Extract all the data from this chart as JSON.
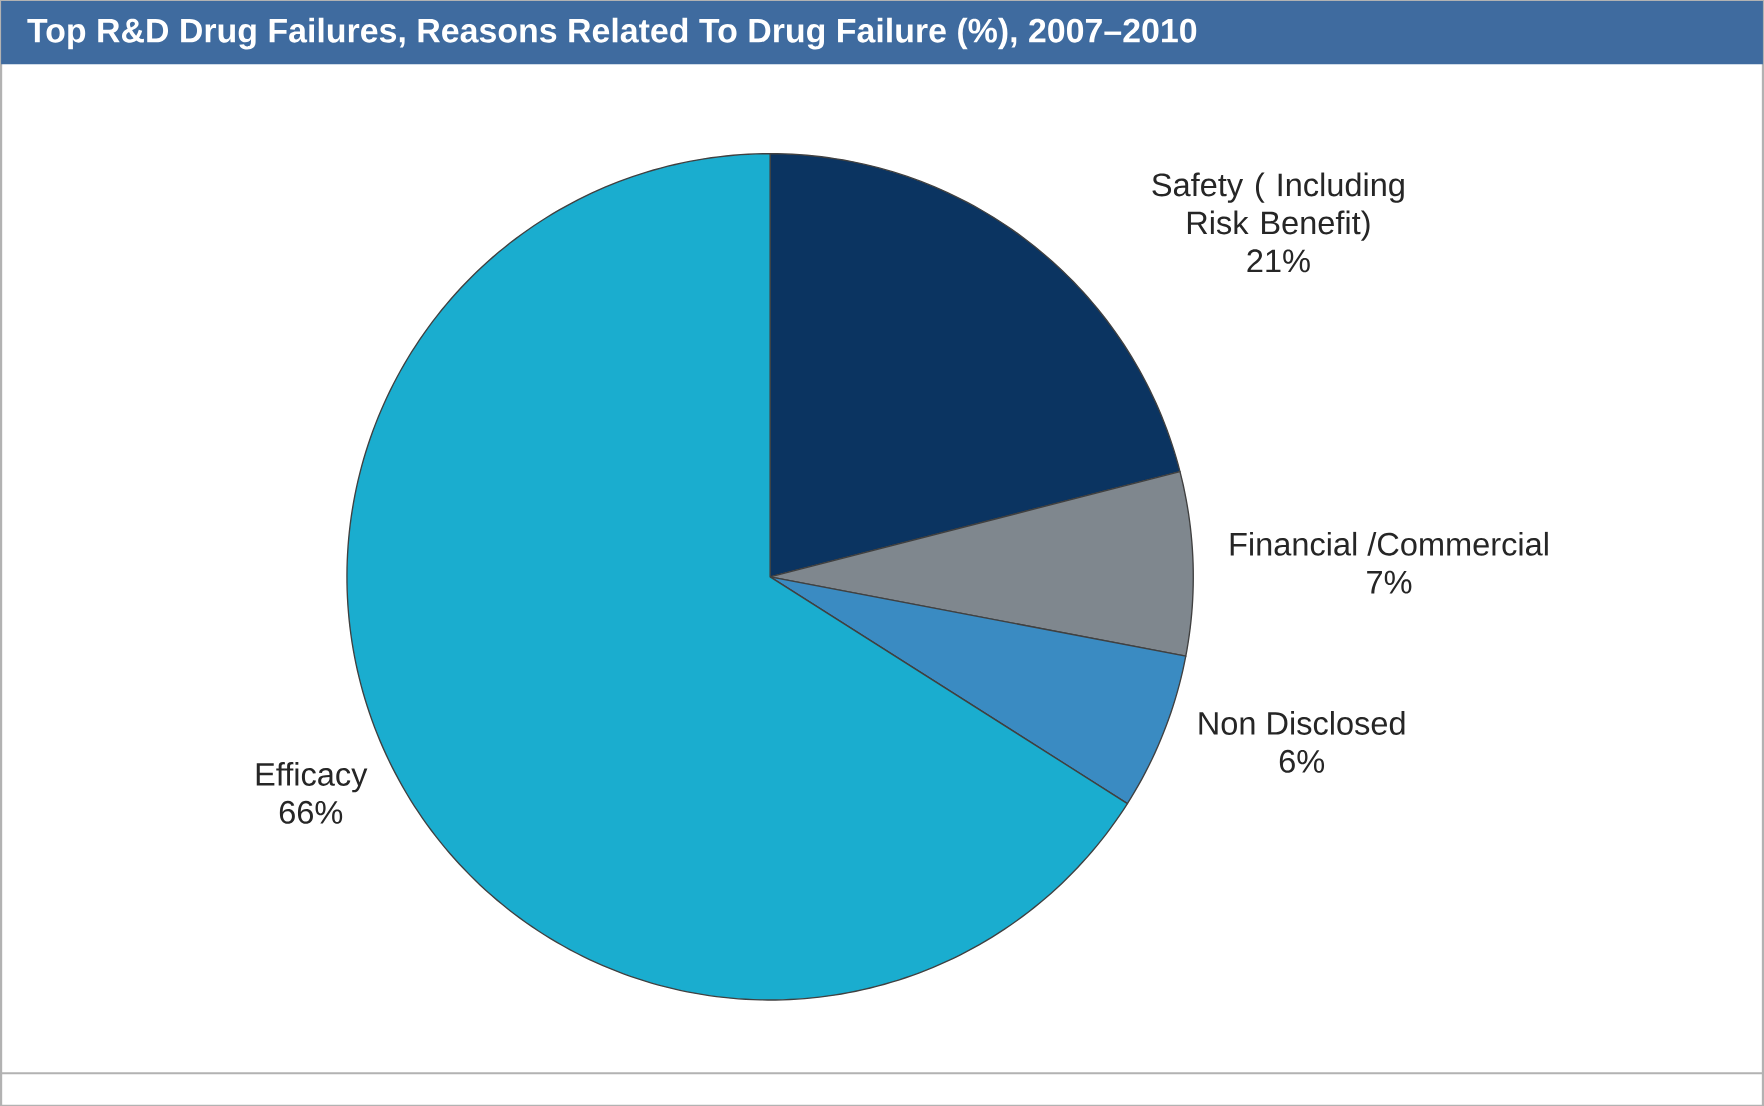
{
  "chart_data": {
    "type": "pie",
    "title": "Top R&D Drug Failures, Reasons Related To Drug Failure (%), 2007–2010",
    "categories": [
      "Safety ( Including Risk Benefit)",
      "Financial /Commercial",
      "Non Disclosed",
      "Efficacy"
    ],
    "values": [
      21,
      7,
      6,
      66
    ],
    "colors": [
      "#0b3461",
      "#7f878e",
      "#3a8bc2",
      "#1aadcf"
    ],
    "value_labels": [
      "21%",
      "7%",
      "6%",
      "66%"
    ]
  }
}
